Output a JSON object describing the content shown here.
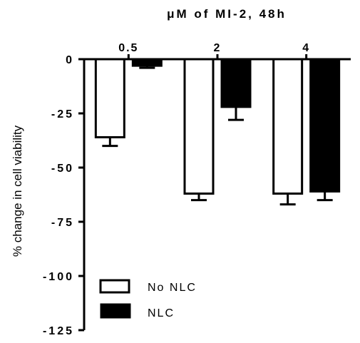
{
  "chart_data": {
    "type": "bar",
    "title": "μM of MI-2, 48h",
    "xlabel": "",
    "ylabel": "% change in cell viability",
    "categories": [
      "0.5",
      "2",
      "4"
    ],
    "ylim": [
      -125,
      0
    ],
    "yticks": [
      0,
      -25,
      -50,
      -75,
      -100,
      -125
    ],
    "ytick_labels": [
      "0",
      "-25",
      "-50",
      "-75",
      "-100",
      "-125"
    ],
    "category_axis_position": "top",
    "legend_position": "bottom-left",
    "grid": false,
    "series": [
      {
        "name": "No NLC",
        "fill": "#ffffff",
        "stroke": "#000000",
        "values": [
          -36,
          -62,
          -62
        ],
        "errors": [
          4,
          3,
          5
        ]
      },
      {
        "name": "NLC",
        "fill": "#000000",
        "stroke": "#000000",
        "values": [
          -3,
          -22,
          -61
        ],
        "errors": [
          1,
          6,
          4
        ]
      }
    ]
  }
}
